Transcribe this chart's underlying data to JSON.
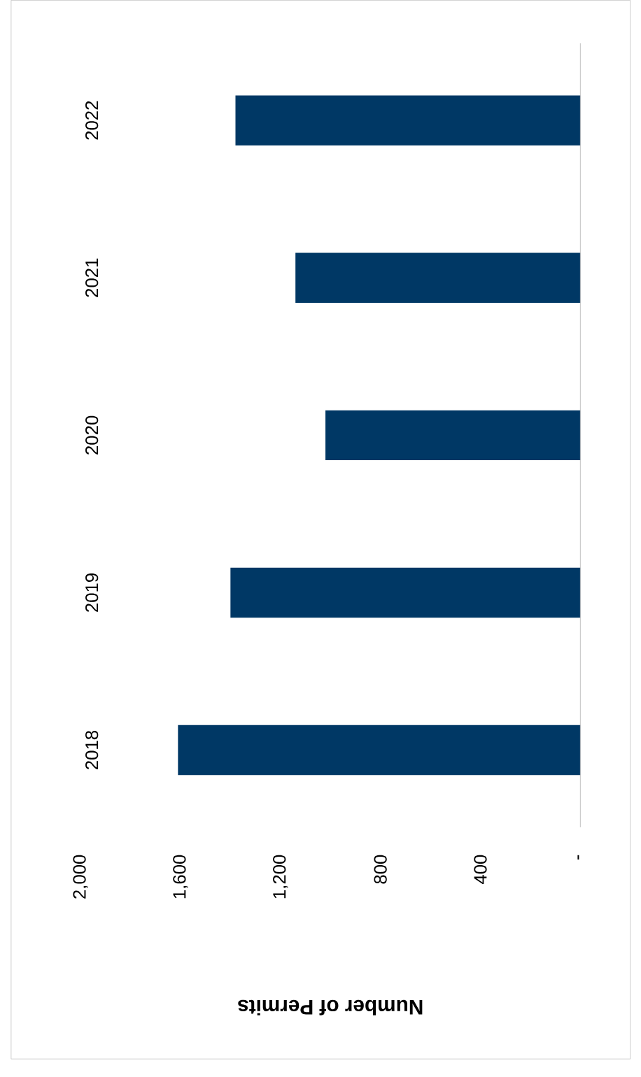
{
  "chart_data": {
    "type": "bar",
    "orientation": "horizontal",
    "xlabel": "Number of Permits",
    "categories": [
      "2022",
      "2021",
      "2020",
      "2019",
      "2018"
    ],
    "values": [
      1380,
      1140,
      1020,
      1400,
      1610
    ],
    "color": "#003865",
    "xlim": [
      2000,
      0
    ],
    "xticks": [
      {
        "value": 0,
        "label": "-"
      },
      {
        "value": 400,
        "label": "400"
      },
      {
        "value": 800,
        "label": "800"
      },
      {
        "value": 1200,
        "label": "1,200"
      },
      {
        "value": 1600,
        "label": "1,600"
      },
      {
        "value": 2000,
        "label": "2,000"
      }
    ]
  }
}
